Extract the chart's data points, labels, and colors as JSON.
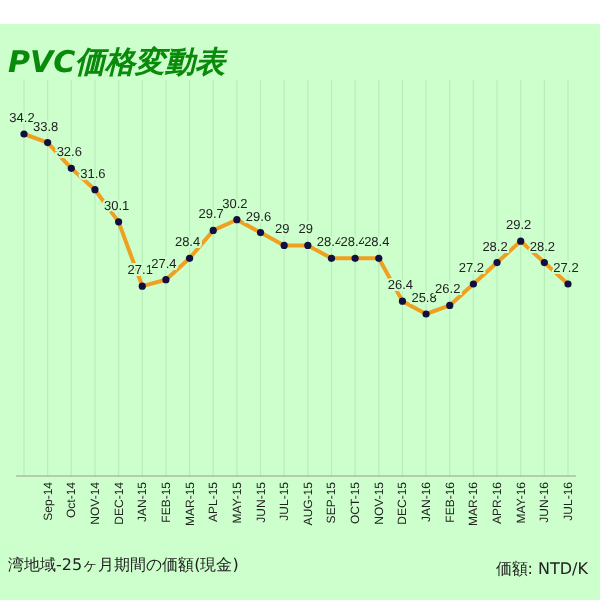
{
  "chart_data": {
    "type": "line",
    "title": "PVC価格変動表",
    "categories": [
      null,
      "Sep-14",
      "Oct-14",
      "NOV-14",
      "DEC-14",
      "JAN-15",
      "FEB-15",
      "MAR-15",
      "APL-15",
      "MAY-15",
      "JUN-15",
      "JUL-15",
      "AUG-15",
      "SEP-15",
      "OCT-15",
      "NOV-15",
      "DEC-15",
      "JAN-16",
      "FEB-16",
      "MAR-16",
      "APR-16",
      "MAY-16",
      "JUN-16",
      "JUL-16"
    ],
    "series": [
      {
        "color": "#f0a020",
        "values": [
          34.2,
          33.8,
          32.6,
          31.6,
          30.1,
          27.1,
          27.4,
          28.4,
          29.7,
          30.2,
          29.6,
          29,
          29,
          28.4,
          28.4,
          28.4,
          26.4,
          25.8,
          26.2,
          27.2,
          28.2,
          29.2,
          28.2,
          27.2
        ]
      }
    ],
    "data_labels": true,
    "marker": "circle",
    "grid": "x",
    "annotations": [
      "湾地域-25ヶ月期間の価額(現金)",
      "価額: NTD/K"
    ]
  }
}
